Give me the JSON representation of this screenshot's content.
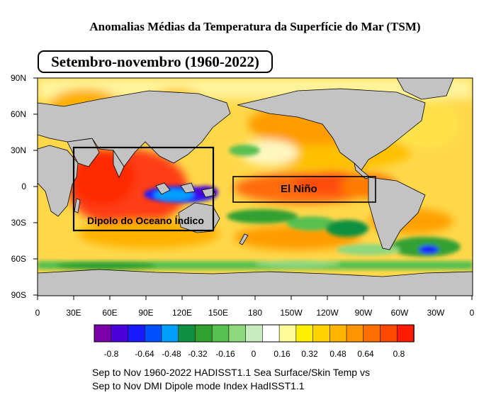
{
  "title": "Anomalias Médias da Temperatura da Superfície do Mar (TSM)",
  "season_label": "Setembro-novembro (1960-2022)",
  "lat_labels": [
    "90N",
    "60N",
    "30N",
    "0",
    "30S",
    "60S",
    "90S"
  ],
  "lon_labels": [
    "0",
    "30E",
    "60E",
    "90E",
    "120E",
    "150E",
    "180",
    "150W",
    "120W",
    "90W",
    "60W",
    "30W",
    "0"
  ],
  "annotations": {
    "indian_ocean_box": "Dipolo do Oceano Índico",
    "pacific_box": "El Niño"
  },
  "colorbar": {
    "colors": [
      "#7a00a8",
      "#4a00d8",
      "#1a1aff",
      "#0050ff",
      "#00a0ff",
      "#109040",
      "#30a030",
      "#58c050",
      "#90d880",
      "#c8ecc0",
      "#ffffff",
      "#fffb9a",
      "#fff000",
      "#ffd200",
      "#ffb400",
      "#ff9400",
      "#ff7000",
      "#ff4800",
      "#ff1c00"
    ],
    "tick_labels": [
      "-0.8",
      "-0.64",
      "-0.48",
      "-0.32",
      "-0.16",
      "0",
      "0.16",
      "0.32",
      "0.48",
      "0.64",
      "0.8"
    ]
  },
  "caption": {
    "line1": "Sep to Nov 1960-2022 HADISST1.1 Sea Surface/Skin Temp vs",
    "line2": "Sep to Nov DMI Dipole mode Index HadISST1.1"
  }
}
